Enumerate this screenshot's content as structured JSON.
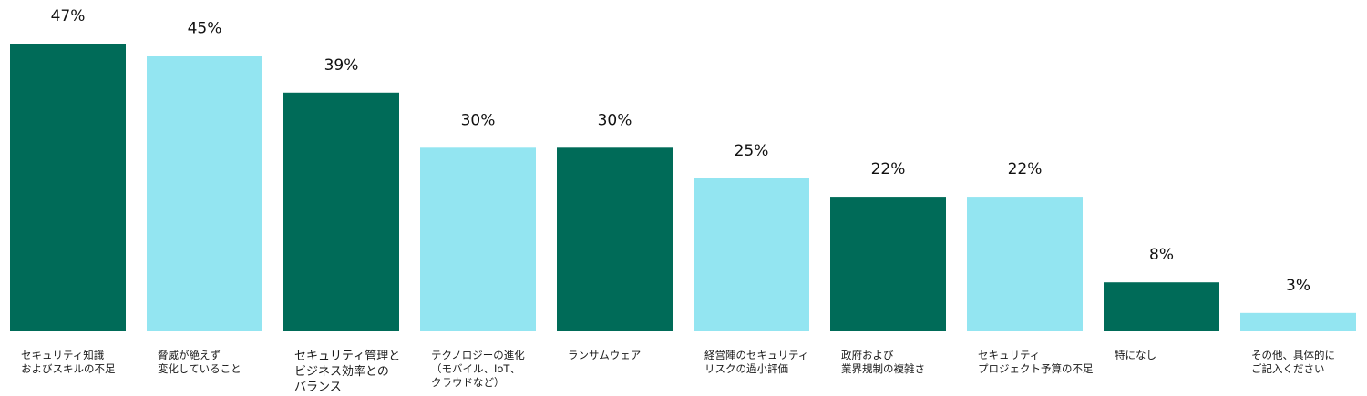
{
  "chart_data": {
    "type": "bar",
    "title": "",
    "xlabel": "",
    "ylabel": "",
    "ylim": [
      0,
      47
    ],
    "grid": false,
    "legend": "none",
    "colors": {
      "dark": "#006B58",
      "light": "#93E5F1"
    },
    "categories": [
      "セキュリティ知識\nおよびスキルの不足",
      "脅威が絶えず\n変化していること",
      "セキュリティ管理と\nビジネス効率との\nバランス",
      "テクノロジーの進化\n（モバイル、IoT、\nクラウドなど）",
      "ランサムウェア",
      "経営陣のセキュリティ\nリスクの過小評価",
      "政府および\n業界規制の複雑さ",
      "セキュリティ\nプロジェクト予算の不足",
      "特になし",
      "その他、具体的に\nご記入ください"
    ],
    "values": [
      47,
      45,
      39,
      30,
      30,
      25,
      22,
      22,
      8,
      3
    ],
    "value_labels": [
      "47%",
      "45%",
      "39%",
      "30%",
      "30%",
      "25%",
      "22%",
      "22%",
      "8%",
      "3%"
    ],
    "bar_colors": [
      "dark",
      "light",
      "dark",
      "light",
      "dark",
      "light",
      "dark",
      "light",
      "dark",
      "light"
    ]
  }
}
